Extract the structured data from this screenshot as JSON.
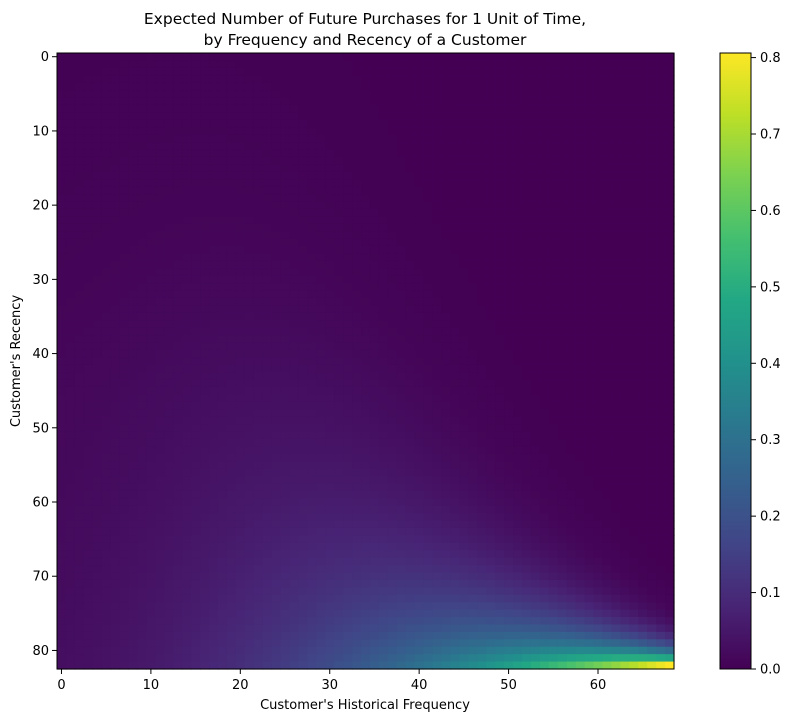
{
  "chart_data": {
    "type": "heatmap",
    "title": "Expected Number of Future Purchases for 1 Unit of Time,\nby Frequency and Recency of a Customer",
    "title_lines": [
      "Expected Number of Future Purchases for 1 Unit of Time,",
      "by Frequency and Recency of a Customer"
    ],
    "xlabel": "Customer's Historical Frequency",
    "ylabel": "Customer's Recency",
    "x_range": [
      0,
      68
    ],
    "y_range": [
      0,
      82
    ],
    "y_inverted": true,
    "x_ticks": [
      0,
      10,
      20,
      30,
      40,
      50,
      60
    ],
    "y_ticks": [
      0,
      10,
      20,
      30,
      40,
      50,
      60,
      70,
      80
    ],
    "colormap": "viridis",
    "color_range": [
      0.0,
      0.8
    ],
    "colorbar_ticks": [
      "0.0",
      "0.1",
      "0.2",
      "0.3",
      "0.4",
      "0.5",
      "0.6",
      "0.7",
      "0.8"
    ],
    "z_sample": [
      {
        "frequency": 0,
        "recency": 82,
        "value": 0.04
      },
      {
        "frequency": 10,
        "recency": 82,
        "value": 0.13
      },
      {
        "frequency": 20,
        "recency": 82,
        "value": 0.22
      },
      {
        "frequency": 30,
        "recency": 82,
        "value": 0.32
      },
      {
        "frequency": 40,
        "recency": 82,
        "value": 0.45
      },
      {
        "frequency": 50,
        "recency": 82,
        "value": 0.58
      },
      {
        "frequency": 60,
        "recency": 82,
        "value": 0.72
      },
      {
        "frequency": 68,
        "recency": 82,
        "value": 0.8
      },
      {
        "frequency": 10,
        "recency": 60,
        "value": 0.07
      },
      {
        "frequency": 20,
        "recency": 70,
        "value": 0.14
      },
      {
        "frequency": 40,
        "recency": 75,
        "value": 0.3
      },
      {
        "frequency": 60,
        "recency": 72,
        "value": 0.03
      },
      {
        "frequency": 30,
        "recency": 40,
        "value": 0.0
      }
    ]
  }
}
